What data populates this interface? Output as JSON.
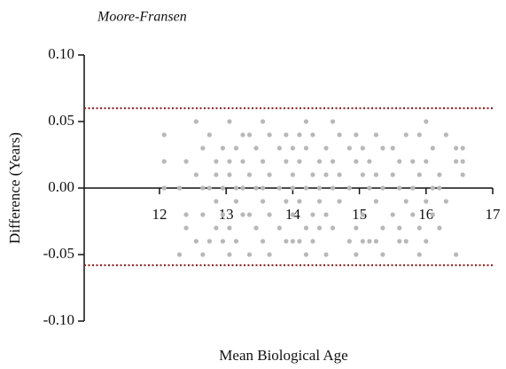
{
  "chart_data": {
    "type": "scatter",
    "title": "Moore-Fransen",
    "x_label": "Mean Biological Age",
    "y_label": "Difference (Years)",
    "xlim": [
      10.87,
      17
    ],
    "ylim": [
      -0.1,
      0.1
    ],
    "xticks": [
      12,
      13,
      14,
      15,
      16,
      17
    ],
    "yticks": [
      {
        "value": 0.1,
        "label": "0.10"
      },
      {
        "value": 0.05,
        "label": "0.05"
      },
      {
        "value": 0,
        "label": "0.00"
      },
      {
        "value": -0.05,
        "label": "-0.05"
      },
      {
        "value": -0.1,
        "label": "-0.10"
      }
    ],
    "reference_lines": [
      0.06,
      -0.058
    ],
    "reference_color": "#9b2a2a",
    "color": "#b8b8b8",
    "x": [
      12.07,
      12.07,
      12.07,
      12.3,
      12.3,
      12.4,
      12.4,
      12.4,
      12.55,
      12.55,
      12.55,
      12.65,
      12.65,
      12.65,
      12.65,
      12.75,
      12.75,
      12.75,
      12.85,
      12.85,
      12.85,
      12.85,
      12.95,
      12.95,
      12.95,
      12.95,
      13.05,
      13.05,
      13.05,
      13.05,
      13.05,
      13.15,
      13.15,
      13.15,
      13.15,
      13.25,
      13.25,
      13.25,
      13.25,
      13.35,
      13.35,
      13.35,
      13.35,
      13.45,
      13.45,
      13.45,
      13.55,
      13.55,
      13.55,
      13.55,
      13.55,
      13.65,
      13.65,
      13.65,
      13.65,
      13.8,
      13.8,
      13.8,
      13.9,
      13.9,
      13.9,
      13.9,
      14.0,
      14.0,
      14.0,
      14.0,
      14.0,
      14.1,
      14.1,
      14.1,
      14.1,
      14.2,
      14.2,
      14.2,
      14.2,
      14.2,
      14.3,
      14.3,
      14.3,
      14.3,
      14.4,
      14.4,
      14.4,
      14.4,
      14.5,
      14.5,
      14.5,
      14.5,
      14.6,
      14.6,
      14.6,
      14.6,
      14.7,
      14.7,
      14.7,
      14.85,
      14.85,
      14.85,
      14.95,
      14.95,
      14.95,
      14.95,
      15.05,
      15.05,
      15.05,
      15.05,
      15.15,
      15.15,
      15.15,
      15.25,
      15.25,
      15.25,
      15.25,
      15.35,
      15.35,
      15.35,
      15.35,
      15.5,
      15.5,
      15.5,
      15.6,
      15.6,
      15.6,
      15.6,
      15.7,
      15.7,
      15.7,
      15.8,
      15.8,
      15.8,
      15.9,
      15.9,
      15.9,
      15.9,
      16.0,
      16.0,
      16.0,
      16.0,
      16.1,
      16.1,
      16.1,
      16.2,
      16.2,
      16.2,
      16.3,
      16.3,
      16.45,
      16.45,
      16.45,
      16.55,
      16.55,
      16.55
    ],
    "y": [
      0.04,
      0.02,
      0,
      0,
      -0.05,
      0.02,
      -0.02,
      -0.03,
      0.05,
      0.01,
      -0.04,
      0.03,
      0,
      -0.02,
      -0.05,
      0.04,
      0,
      -0.04,
      0.02,
      0.01,
      -0.01,
      -0.03,
      0.03,
      0,
      -0.02,
      -0.04,
      0.05,
      0.02,
      0.01,
      -0.03,
      -0.05,
      0.03,
      0,
      -0.01,
      -0.04,
      0.04,
      0.02,
      0,
      -0.02,
      0.04,
      0.01,
      -0.02,
      -0.05,
      0.03,
      0,
      -0.03,
      0.05,
      0.02,
      0,
      -0.01,
      -0.04,
      0.04,
      0.01,
      -0.02,
      -0.05,
      0.03,
      0,
      -0.03,
      0.04,
      0.02,
      -0.01,
      -0.04,
      0.03,
      0.01,
      0,
      -0.02,
      -0.04,
      0.04,
      0.02,
      -0.01,
      -0.04,
      0.05,
      0.03,
      0,
      -0.03,
      -0.05,
      0.04,
      0.01,
      -0.02,
      -0.04,
      0.02,
      0,
      -0.01,
      -0.03,
      0.03,
      0.01,
      -0.02,
      -0.05,
      0.05,
      0.02,
      0,
      -0.03,
      0.04,
      0.01,
      -0.01,
      0.03,
      0,
      -0.04,
      0.04,
      0.02,
      -0.03,
      -0.05,
      0.03,
      0.01,
      -0.02,
      -0.04,
      0.02,
      0,
      -0.04,
      0.04,
      0.01,
      -0.01,
      -0.04,
      0.03,
      0,
      -0.03,
      -0.05,
      0.03,
      0.01,
      -0.02,
      0.02,
      0,
      -0.03,
      -0.04,
      0.04,
      -0.01,
      -0.04,
      0.02,
      0,
      -0.02,
      0.04,
      0.01,
      -0.03,
      -0.05,
      0.05,
      0.02,
      -0.01,
      -0.04,
      0.03,
      0,
      -0.02,
      0.01,
      0,
      -0.03,
      0.04,
      -0.01,
      0.03,
      0.02,
      -0.05,
      0.03,
      0.02,
      0.01
    ]
  }
}
